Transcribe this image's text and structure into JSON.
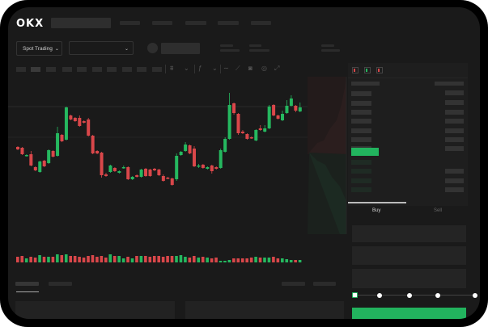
{
  "brand": {
    "logo": "OKX"
  },
  "header": {
    "market_selector": "Spot Trading",
    "pair_selector": "",
    "chevron_icon": "chevron-down-icon"
  },
  "toolbar": {
    "icons": [
      "candles-icon",
      "indicator-icon",
      "line-icon",
      "ruler-icon",
      "camera-icon",
      "settings-icon",
      "fullscreen-icon"
    ]
  },
  "orderbook": {
    "view_icons": [
      "orderbook-both-icon",
      "orderbook-bids-icon",
      "orderbook-asks-icon"
    ]
  },
  "trade": {
    "tabs": [
      {
        "label": "Buy",
        "active": true
      },
      {
        "label": "Sell",
        "active": false
      }
    ],
    "slider_percent": 0,
    "slider_stops": [
      0,
      25,
      50,
      75,
      100
    ]
  },
  "colors": {
    "up": "#25b85f",
    "down": "#d9474a",
    "background": "#1a1a1a",
    "accent": "#22b35e"
  },
  "chart_data": {
    "type": "candlestick",
    "title": "",
    "grid": false,
    "ohlc": [
      [
        118,
        115,
        119,
        114
      ],
      [
        117,
        109,
        118,
        108
      ],
      [
        107,
        108,
        109,
        106
      ],
      [
        109,
        95,
        113,
        94
      ],
      [
        93,
        89,
        94,
        88
      ],
      [
        87,
        100,
        101,
        86
      ],
      [
        101,
        94,
        102,
        93
      ],
      [
        98,
        114,
        115,
        97
      ],
      [
        113,
        106,
        114,
        105
      ],
      [
        107,
        135,
        143,
        106
      ],
      [
        133,
        125,
        134,
        124
      ],
      [
        127,
        167,
        168,
        126
      ],
      [
        157,
        152,
        158,
        151
      ],
      [
        154,
        150,
        155,
        149
      ],
      [
        154,
        144,
        157,
        143
      ],
      [
        150,
        148,
        151,
        147
      ],
      [
        152,
        132,
        154,
        131
      ],
      [
        132,
        110,
        133,
        109
      ],
      [
        113,
        110,
        114,
        109
      ],
      [
        111,
        83,
        112,
        80
      ],
      [
        84,
        82,
        86,
        81
      ],
      [
        87,
        95,
        96,
        86
      ],
      [
        92,
        88,
        93,
        87
      ],
      [
        86,
        88,
        89,
        85
      ],
      [
        92,
        93,
        95,
        91
      ],
      [
        93,
        78,
        94,
        77
      ],
      [
        78,
        81,
        82,
        77
      ],
      [
        83,
        81,
        84,
        80
      ],
      [
        81,
        90,
        91,
        80
      ],
      [
        91,
        82,
        92,
        81
      ],
      [
        90,
        82,
        91,
        81
      ],
      [
        91,
        89,
        92,
        88
      ],
      [
        90,
        83,
        91,
        82
      ],
      [
        82,
        76,
        84,
        75
      ],
      [
        80,
        79,
        81,
        78
      ],
      [
        79,
        71,
        80,
        70
      ],
      [
        78,
        107,
        110,
        76
      ],
      [
        108,
        112,
        113,
        107
      ],
      [
        113,
        121,
        124,
        112
      ],
      [
        120,
        110,
        121,
        109
      ],
      [
        116,
        94,
        119,
        93
      ],
      [
        94,
        95,
        97,
        92
      ],
      [
        96,
        92,
        97,
        91
      ],
      [
        91,
        93,
        94,
        90
      ],
      [
        95,
        88,
        96,
        85
      ],
      [
        93,
        91,
        94,
        90
      ],
      [
        92,
        114,
        116,
        91
      ],
      [
        112,
        128,
        130,
        111
      ],
      [
        128,
        170,
        185,
        127
      ],
      [
        172,
        160,
        173,
        158
      ],
      [
        159,
        135,
        160,
        133
      ],
      [
        137,
        135,
        139,
        134
      ],
      [
        134,
        128,
        135,
        127
      ],
      [
        130,
        129,
        131,
        128
      ],
      [
        126,
        139,
        140,
        125
      ],
      [
        141,
        139,
        145,
        138
      ],
      [
        137,
        141,
        145,
        136
      ],
      [
        141,
        168,
        170,
        140
      ],
      [
        170,
        157,
        171,
        156
      ],
      [
        157,
        153,
        158,
        152
      ],
      [
        151,
        159,
        163,
        150
      ],
      [
        160,
        169,
        176,
        159
      ],
      [
        169,
        178,
        182,
        168
      ],
      [
        169,
        163,
        170,
        161
      ],
      [
        162,
        167,
        173,
        161
      ]
    ],
    "volume": [
      7,
      8,
      5,
      7,
      6,
      9,
      7,
      7,
      7,
      10,
      9,
      10,
      8,
      8,
      7,
      6,
      8,
      9,
      7,
      8,
      6,
      10,
      8,
      8,
      5,
      7,
      5,
      8,
      8,
      8,
      7,
      8,
      8,
      7,
      8,
      8,
      8,
      9,
      7,
      6,
      8,
      6,
      7,
      6,
      5,
      6,
      2,
      2,
      3,
      5,
      5,
      5,
      5,
      6,
      7,
      6,
      6,
      6,
      7,
      5,
      5,
      4,
      3,
      3,
      3
    ],
    "ylim": [
      60,
      190
    ]
  }
}
